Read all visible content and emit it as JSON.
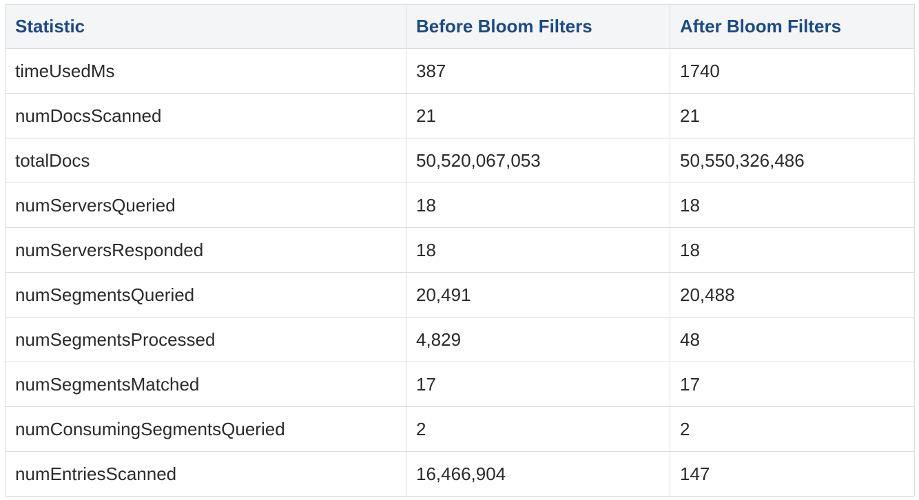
{
  "table": {
    "headers": [
      "Statistic",
      "Before Bloom Filters",
      "After Bloom Filters"
    ],
    "rows": [
      [
        "timeUsedMs",
        "387",
        "1740"
      ],
      [
        "numDocsScanned",
        "21",
        "21"
      ],
      [
        "totalDocs",
        "50,520,067,053",
        "50,550,326,486"
      ],
      [
        "numServersQueried",
        "18",
        "18"
      ],
      [
        "numServersResponded",
        "18",
        "18"
      ],
      [
        "numSegmentsQueried",
        "20,491",
        "20,488"
      ],
      [
        "numSegmentsProcessed",
        "4,829",
        "48"
      ],
      [
        "numSegmentsMatched",
        "17",
        "17"
      ],
      [
        "numConsumingSegmentsQueried",
        "2",
        "2"
      ],
      [
        "numEntriesScanned",
        "16,466,904",
        "147"
      ]
    ],
    "colors": {
      "header_text": "#1c4a85",
      "header_bg": "#f3f5f7",
      "border": "#dcdcdc",
      "body_text": "#2b2b2b"
    }
  }
}
